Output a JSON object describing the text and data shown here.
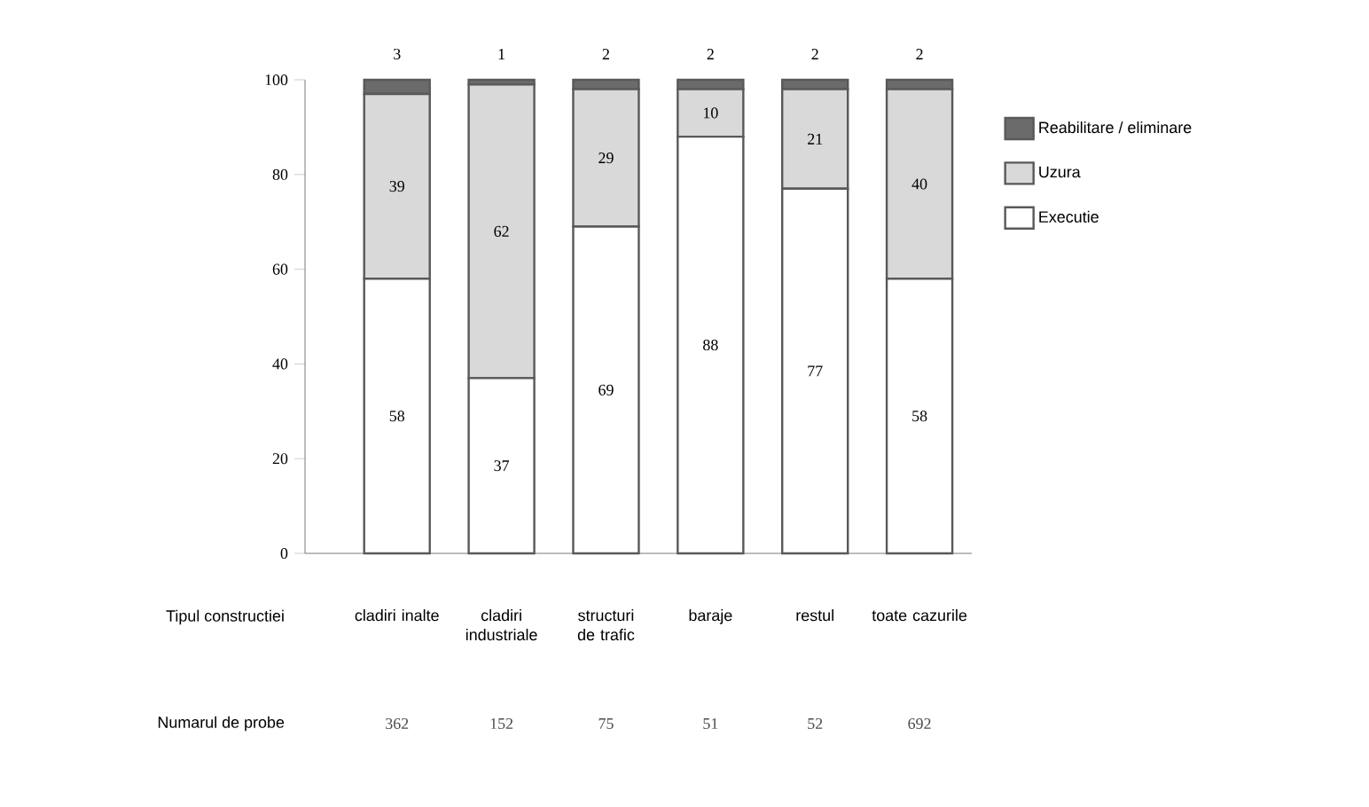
{
  "chart_data": {
    "type": "bar",
    "stacked": true,
    "categories": [
      "cladiri inalte",
      "cladiri industriale",
      "structuri de trafic",
      "baraje",
      "restul",
      "toate cazurile"
    ],
    "series": [
      {
        "name": "Executie",
        "color": "#ffffff",
        "values": [
          58,
          37,
          69,
          88,
          77,
          58
        ]
      },
      {
        "name": "Uzura",
        "color": "#d9d9d9",
        "values": [
          39,
          62,
          29,
          10,
          21,
          40
        ]
      },
      {
        "name": "Reabilitare / eliminare",
        "color": "#6b6b6b",
        "values": [
          3,
          1,
          2,
          2,
          2,
          2
        ]
      }
    ],
    "ylim": [
      0,
      100
    ],
    "yticks": [
      0,
      20,
      40,
      60,
      80,
      100
    ],
    "data_labels": true,
    "legend": "right",
    "grid": false,
    "annotations": [
      "Tipul constructiei",
      "Numarul de probe",
      "362",
      "152",
      "75",
      "51",
      "52",
      "692"
    ]
  }
}
